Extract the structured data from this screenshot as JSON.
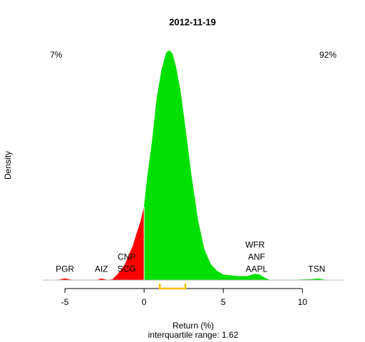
{
  "chart_data": {
    "type": "density",
    "title": "2012-11-19",
    "xlabel": "Return (%)",
    "ylabel": "Density",
    "subtitle": "interquartile range: 1.62",
    "x": [
      -5.5,
      -5,
      -4.5,
      -3,
      -2.7,
      -2.3,
      -2,
      -1.7,
      -1.5,
      -1.2,
      -1,
      -0.7,
      -0.5,
      -0.2,
      0,
      0.2,
      0.5,
      0.8,
      1.1,
      1.4,
      1.6,
      1.8,
      2,
      2.3,
      2.6,
      3,
      3.4,
      3.8,
      4.2,
      4.6,
      5,
      5.5,
      6,
      6.5,
      7,
      7.3,
      7.7,
      8,
      9,
      10.5,
      11,
      11.5
    ],
    "values": [
      0,
      0.002,
      0,
      0,
      0.002,
      0,
      0.001,
      0.007,
      0.012,
      0.021,
      0.031,
      0.045,
      0.059,
      0.078,
      0.096,
      0.134,
      0.18,
      0.237,
      0.274,
      0.297,
      0.3,
      0.295,
      0.279,
      0.246,
      0.199,
      0.134,
      0.078,
      0.04,
      0.021,
      0.012,
      0.007,
      0.006,
      0.005,
      0.005,
      0.008,
      0.007,
      0.002,
      0,
      0,
      0.001,
      0.002,
      0
    ],
    "negative_color": "#ff0000",
    "positive_color": "#00e000",
    "split": 0,
    "labels": [
      {
        "text": "PGR",
        "x": -5
      },
      {
        "text": "AIZ",
        "x": -2.7
      },
      {
        "text": "SCG",
        "x": -1.1
      },
      {
        "text": "CNP",
        "x": -1.1
      },
      {
        "text": "AAPL",
        "x": 7.1
      },
      {
        "text": "ANF",
        "x": 7.1
      },
      {
        "text": "WFR",
        "x": 7.0
      },
      {
        "text": "TSN",
        "x": 10.9
      }
    ],
    "shares": [
      7,
      92
    ],
    "share_labels": [
      "7%",
      "92%"
    ],
    "iqr": [
      0.99,
      2.61
    ],
    "iqr_color": "#ffc000",
    "xlim": [
      -6.4,
      12.6
    ],
    "ylim": [
      -0.011,
      0.31
    ],
    "xticks": [
      -5,
      0,
      5,
      10
    ]
  }
}
